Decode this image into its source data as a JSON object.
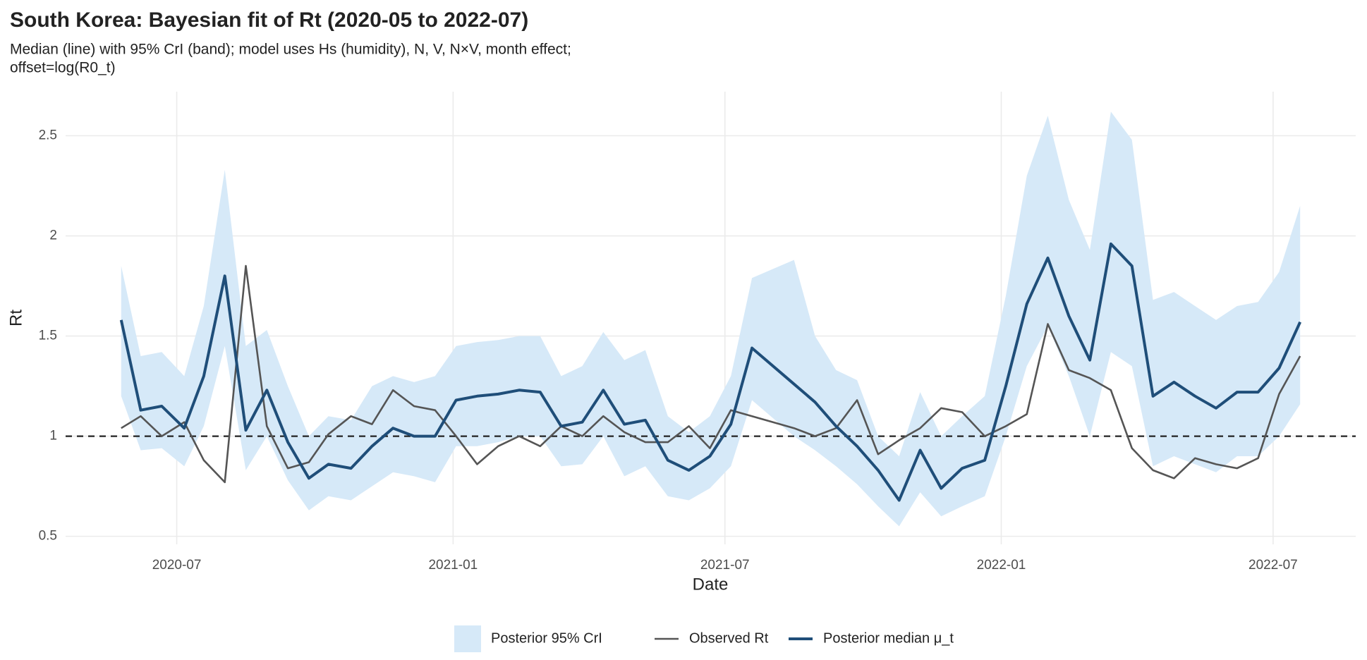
{
  "chart_data": {
    "type": "line",
    "title": "South Korea: Bayesian fit of Rt (2020-05 to 2022-07)",
    "subtitle": [
      "Median (line) with 95% CrI (band); model uses Hs (humidity), N, V, N×V, month effect;",
      "offset=log(R0_t)"
    ],
    "xlabel": "Date",
    "ylabel": "Rt",
    "x": [
      "2020-05-25",
      "2020-06-07",
      "2020-06-21",
      "2020-07-06",
      "2020-07-19",
      "2020-08-02",
      "2020-08-16",
      "2020-08-30",
      "2020-09-13",
      "2020-09-27",
      "2020-10-10",
      "2020-10-25",
      "2020-11-08",
      "2020-11-22",
      "2020-12-06",
      "2020-12-20",
      "2021-01-03",
      "2021-01-17",
      "2021-01-31",
      "2021-02-14",
      "2021-02-28",
      "2021-03-14",
      "2021-03-28",
      "2021-04-11",
      "2021-04-25",
      "2021-05-09",
      "2021-05-24",
      "2021-06-07",
      "2021-06-21",
      "2021-07-05",
      "2021-07-19",
      "2021-08-16",
      "2021-08-30",
      "2021-09-13",
      "2021-09-27",
      "2021-10-11",
      "2021-10-25",
      "2021-11-08",
      "2021-11-22",
      "2021-12-06",
      "2021-12-21",
      "2022-01-04",
      "2022-01-18",
      "2022-02-01",
      "2022-02-15",
      "2022-03-01",
      "2022-03-15",
      "2022-03-29",
      "2022-04-12",
      "2022-04-26",
      "2022-05-10",
      "2022-05-24",
      "2022-06-07",
      "2022-06-21",
      "2022-07-05",
      "2022-07-19"
    ],
    "band": {
      "name": "Posterior 95% CrI",
      "color": "#d6e9f8",
      "lower": [
        1.2,
        0.93,
        0.94,
        0.85,
        1.05,
        1.45,
        0.83,
        1.0,
        0.78,
        0.63,
        0.7,
        0.68,
        0.75,
        0.82,
        0.8,
        0.77,
        0.95,
        0.95,
        0.97,
        1.0,
        1.0,
        0.85,
        0.86,
        1.0,
        0.8,
        0.85,
        0.7,
        0.68,
        0.74,
        0.85,
        1.18,
        1.0,
        0.93,
        0.85,
        0.76,
        0.65,
        0.55,
        0.72,
        0.6,
        0.65,
        0.7,
        1.0,
        1.35,
        1.55,
        1.3,
        1.0,
        1.42,
        1.35,
        0.85,
        0.9,
        0.86,
        0.82,
        0.9,
        0.9,
        1.0,
        1.16
      ],
      "upper": [
        1.85,
        1.4,
        1.42,
        1.3,
        1.65,
        2.33,
        1.45,
        1.53,
        1.25,
        1.0,
        1.1,
        1.08,
        1.25,
        1.3,
        1.27,
        1.3,
        1.45,
        1.47,
        1.48,
        1.5,
        1.5,
        1.3,
        1.35,
        1.52,
        1.38,
        1.43,
        1.1,
        1.02,
        1.1,
        1.3,
        1.79,
        1.88,
        1.5,
        1.33,
        1.28,
        1.0,
        0.9,
        1.22,
        1.0,
        1.1,
        1.2,
        1.7,
        2.3,
        2.6,
        2.18,
        1.93,
        2.62,
        2.48,
        1.68,
        1.72,
        1.65,
        1.58,
        1.65,
        1.67,
        1.82,
        2.15
      ]
    },
    "series": [
      {
        "name": "Observed Rt",
        "color": "#555555",
        "values": [
          1.04,
          1.1,
          1.0,
          1.07,
          0.88,
          0.77,
          1.85,
          1.05,
          0.84,
          0.87,
          1.01,
          1.1,
          1.06,
          1.23,
          1.15,
          1.13,
          1.0,
          0.86,
          0.95,
          1.0,
          0.95,
          1.05,
          1.0,
          1.1,
          1.02,
          0.97,
          0.97,
          1.05,
          0.94,
          1.13,
          1.1,
          1.04,
          1.0,
          1.04,
          1.18,
          0.91,
          0.98,
          1.04,
          1.14,
          1.12,
          1.0,
          1.05,
          1.11,
          1.56,
          1.33,
          1.29,
          1.23,
          0.94,
          0.83,
          0.79,
          0.89,
          0.86,
          0.84,
          0.89,
          1.21,
          1.4
        ]
      },
      {
        "name": "Posterior median μ_t",
        "color": "#1f4e79",
        "values": [
          1.58,
          1.13,
          1.15,
          1.04,
          1.3,
          1.8,
          1.03,
          1.23,
          0.97,
          0.79,
          0.86,
          0.84,
          0.95,
          1.04,
          1.0,
          1.0,
          1.18,
          1.2,
          1.21,
          1.23,
          1.22,
          1.05,
          1.07,
          1.23,
          1.06,
          1.08,
          0.88,
          0.83,
          0.9,
          1.06,
          1.44,
          1.26,
          1.17,
          1.05,
          0.95,
          0.83,
          0.68,
          0.93,
          0.74,
          0.84,
          0.88,
          1.25,
          1.66,
          1.89,
          1.6,
          1.38,
          1.96,
          1.85,
          1.2,
          1.27,
          1.2,
          1.14,
          1.22,
          1.22,
          1.34,
          1.57
        ]
      }
    ],
    "hline": 1.0,
    "xlim": [
      "2020-04-18",
      "2022-08-25"
    ],
    "xticks": [
      "2020-07",
      "2021-01",
      "2021-07",
      "2022-01",
      "2022-07"
    ],
    "ylim": [
      0.46,
      2.72
    ],
    "yticks": [
      0.5,
      1.0,
      1.5,
      2.0,
      2.5
    ],
    "grid": true
  }
}
